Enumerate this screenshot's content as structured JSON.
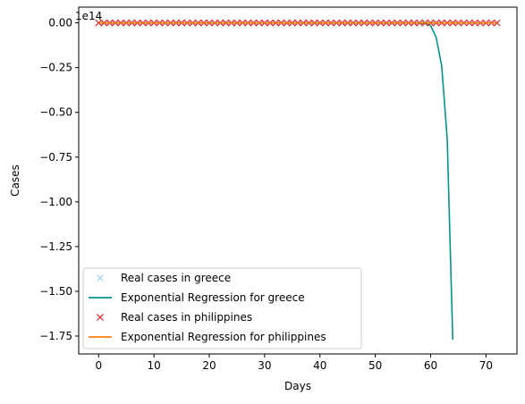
{
  "chart_data": {
    "type": "line",
    "xlabel": "Days",
    "ylabel": "Cases",
    "offset_text": "1e14",
    "xlim": [
      -3.6,
      75.6
    ],
    "ylim": [
      -1.85,
      0.088
    ],
    "y_scale_factor": 100000000000000.0,
    "x_ticks": [
      0,
      10,
      20,
      30,
      40,
      50,
      60,
      70
    ],
    "x_tick_labels": [
      "0",
      "10",
      "20",
      "30",
      "40",
      "50",
      "60",
      "70"
    ],
    "y_ticks": [
      0.0,
      -0.25,
      -0.5,
      -0.75,
      -1.0,
      -1.25,
      -1.5,
      -1.75
    ],
    "y_tick_labels": [
      "0.00",
      "−0.25",
      "−0.50",
      "−0.75",
      "−1.00",
      "−1.25",
      "−1.50",
      "−1.75"
    ],
    "grid": false,
    "legend_position": "lower-left",
    "series": [
      {
        "name": "Real cases in greece",
        "style": "marker",
        "marker": "x",
        "color": "#a6cee3",
        "x_start": 0,
        "x_end": 64,
        "y_constant": 0
      },
      {
        "name": "Exponential Regression for greece",
        "style": "line",
        "color": "#009688",
        "x": [
          0,
          10,
          20,
          30,
          40,
          50,
          55,
          57,
          58,
          59,
          60,
          61,
          62,
          63,
          64
        ],
        "y": [
          0,
          0,
          0,
          0,
          0,
          0,
          0,
          -0.0005,
          -0.0015,
          -0.004,
          -0.015,
          -0.08,
          -0.24,
          -0.65,
          -1.77
        ]
      },
      {
        "name": "Real cases in philippines",
        "style": "marker",
        "marker": "x",
        "color": "#e31a1c",
        "x_start": 0,
        "x_end": 72,
        "y_constant": 0
      },
      {
        "name": "Exponential Regression for philippines",
        "style": "line",
        "color": "#ff7f0e",
        "x": [
          0,
          72
        ],
        "y": [
          0,
          0
        ]
      }
    ]
  }
}
